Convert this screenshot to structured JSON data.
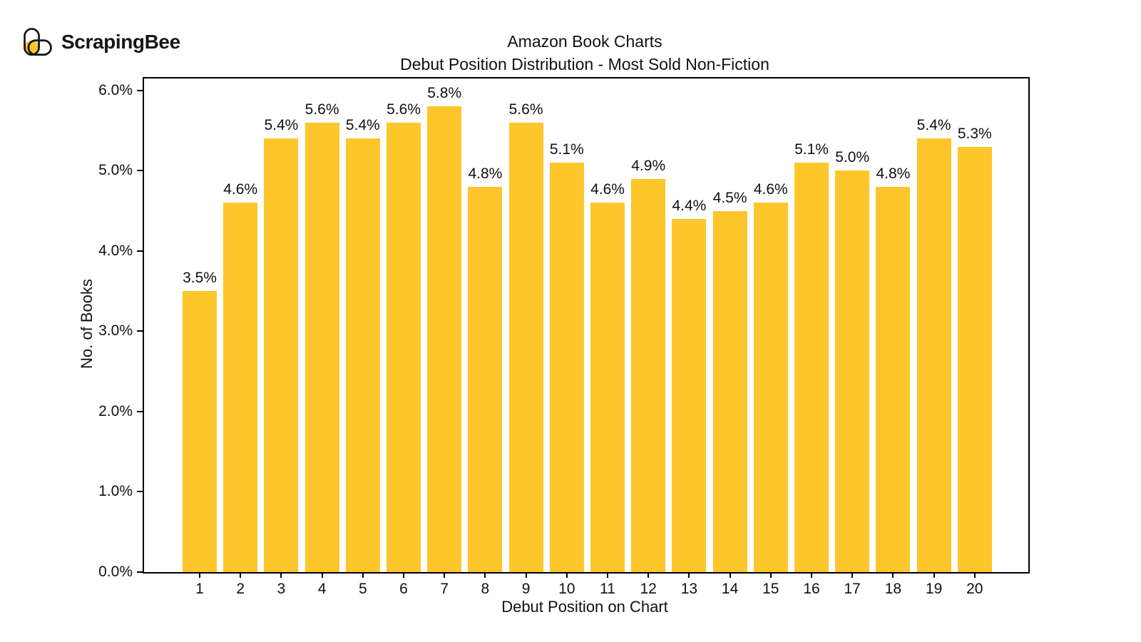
{
  "logo": {
    "text": "ScrapingBee",
    "icon": "scrapingbee-bee-icon",
    "accent_color": "#FDC62A",
    "outline_color": "#1a1a1a"
  },
  "chart_data": {
    "type": "bar",
    "title": "Amazon Book Charts",
    "subtitle": "Debut Position Distribution - Most Sold Non-Fiction",
    "xlabel": "Debut Position on Chart",
    "ylabel": "No. of Books",
    "categories": [
      "1",
      "2",
      "3",
      "4",
      "5",
      "6",
      "7",
      "8",
      "9",
      "10",
      "11",
      "12",
      "13",
      "14",
      "15",
      "16",
      "17",
      "18",
      "19",
      "20"
    ],
    "values": [
      3.5,
      4.6,
      5.4,
      5.6,
      5.4,
      5.6,
      5.8,
      4.8,
      5.6,
      5.1,
      4.6,
      4.9,
      4.4,
      4.5,
      4.6,
      5.1,
      5.0,
      4.8,
      5.4,
      5.3
    ],
    "value_suffix": "%",
    "bar_color": "#FDC62A",
    "ylim": [
      0,
      6.15
    ],
    "yticks": [
      "0.0%",
      "1.0%",
      "2.0%",
      "3.0%",
      "4.0%",
      "5.0%",
      "6.0%"
    ],
    "grid": false,
    "legend": false
  }
}
